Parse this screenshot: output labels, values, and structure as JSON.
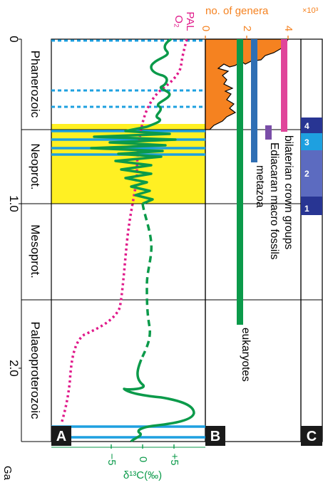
{
  "axis": {
    "time_unit": "Ga",
    "tick_labels": [
      "0",
      "1.0",
      "2.0"
    ],
    "d13c_ticks": [
      "−5",
      "0",
      "+5"
    ],
    "d13c_label": "δ¹³C(‰)",
    "o2_label_line1": "PAL",
    "o2_label_line2": "O₂",
    "genera_label": "no. of genera",
    "genera_multiplier": "×10³",
    "genera_ticks": [
      "0",
      "2",
      "4"
    ]
  },
  "eras": [
    {
      "label": "Phanerozoic",
      "from_ga": 0,
      "to_ga": 0.54
    },
    {
      "label": "Neoprot.",
      "from_ga": 0.54,
      "to_ga": 1.0
    },
    {
      "label": "Mesoprot.",
      "from_ga": 1.0,
      "to_ga": 1.6
    },
    {
      "label": "Palaeoproterozoic",
      "from_ga": 1.6,
      "to_ga": 2.5
    }
  ],
  "panels": {
    "a": "A",
    "b": "B",
    "c": "C"
  },
  "lineages": [
    {
      "label": "eukaryotes",
      "from_ga": 0.0,
      "to_ga": 1.8,
      "color": "#0b9a4a"
    },
    {
      "label": "metazoa",
      "from_ga": 0.0,
      "to_ga": 0.75,
      "color": "#2f6fb4"
    },
    {
      "label": "Ediacaran macro fossils",
      "from_ga": 0.56,
      "to_ga": 0.64,
      "color": "#7a4ea8"
    },
    {
      "label": "bilaterian crown groups",
      "from_ga": 0.0,
      "to_ga": 0.59,
      "color": "#e0459a"
    }
  ],
  "intervals": [
    {
      "label": "4",
      "from_ga": 0.54,
      "to_ga": 0.58,
      "color": "#283593"
    },
    {
      "label": "3",
      "from_ga": 0.58,
      "to_ga": 0.64,
      "color": "#1ea0e0"
    },
    {
      "label": "2",
      "from_ga": 0.64,
      "to_ga": 0.92,
      "color": "#5c6bc0"
    },
    {
      "label": "1",
      "from_ga": 0.92,
      "to_ga": 1.0,
      "color": "#283593"
    }
  ],
  "colors": {
    "yellow_band": "#fff023",
    "carbon_curve": "#0b9a4a",
    "o2_curve": "#e0198a",
    "genera_fill": "#f58220",
    "glaciation": "#1ea0e0",
    "axis_accent": "#e0198a",
    "d13c_accent": "#0b9a4a",
    "genera_accent": "#f58220"
  }
}
